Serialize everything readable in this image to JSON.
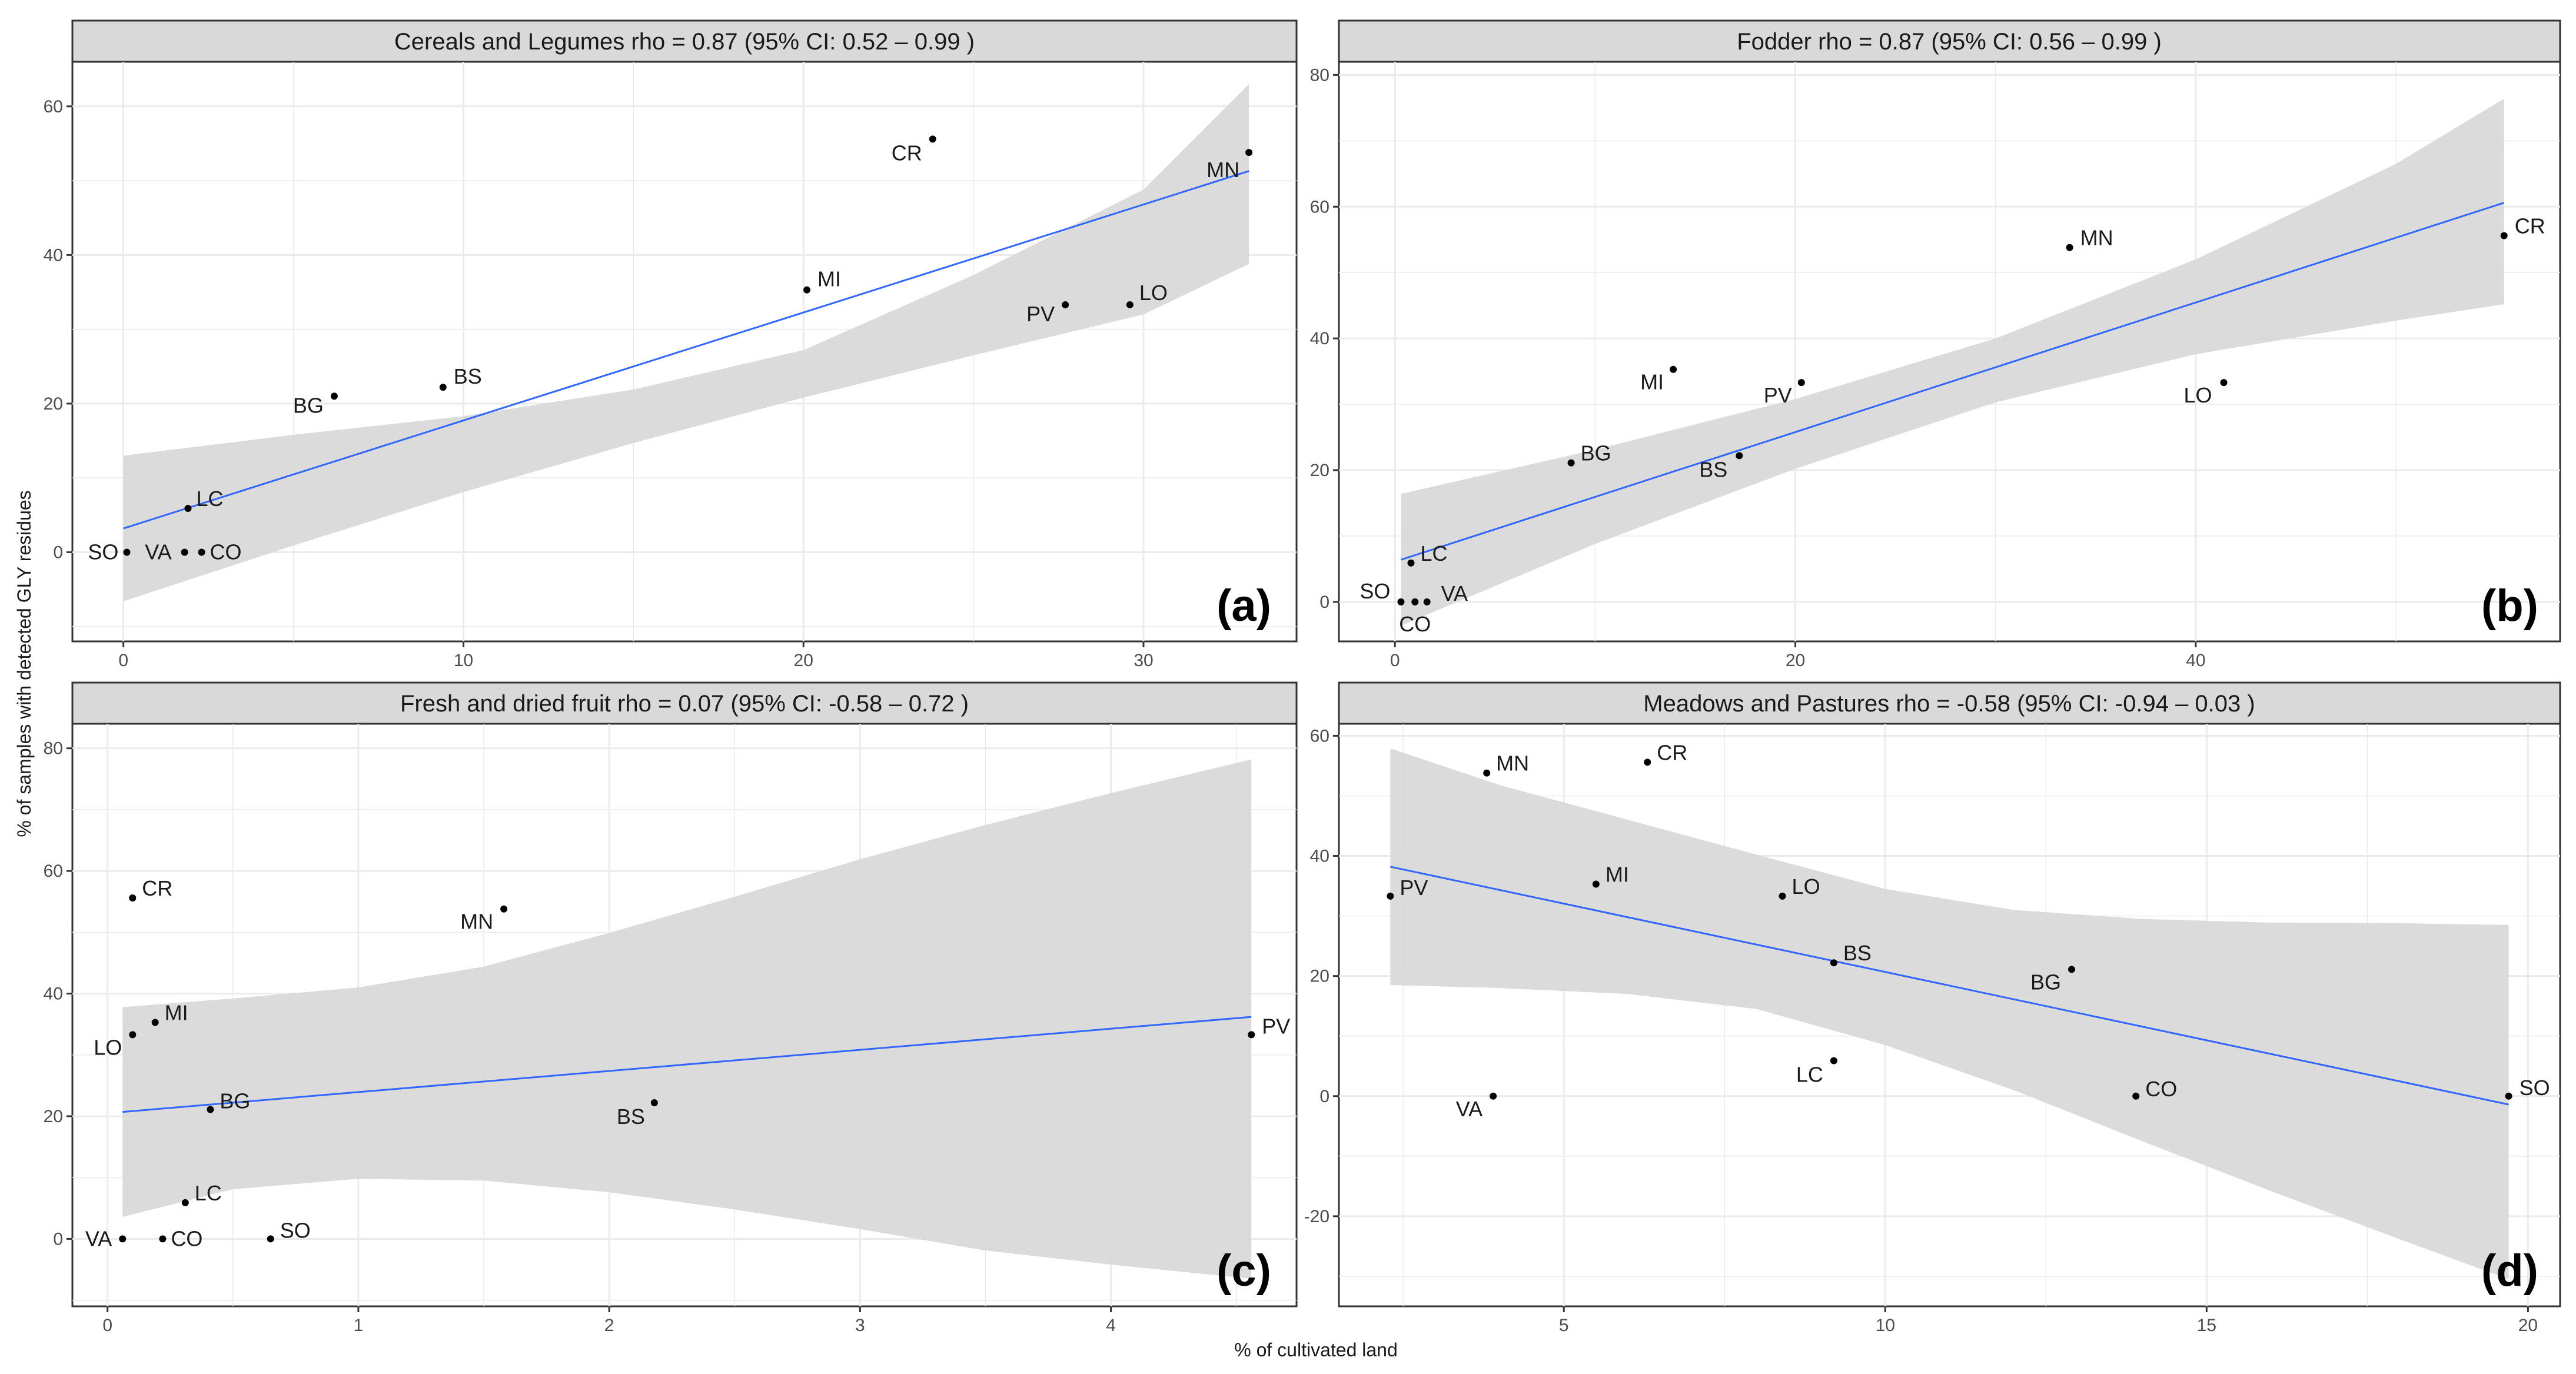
{
  "figure": {
    "xlabel": "% of cultivated land",
    "ylabel": "% of samples with detected GLY residues"
  },
  "colors": {
    "fit_line": "#3366ff",
    "confidence_band": "#d9d9d9",
    "points": "#000000",
    "strip_bg": "#d9d9d9",
    "grid": "#ebebeb"
  },
  "chart_data": [
    {
      "type": "scatter",
      "panel_tag": "(a)",
      "title": "Cereals and Legumes   rho = 0.87 (95% CI: 0.52 – 0.99 )",
      "xlim": [
        -1.5,
        34.5
      ],
      "ylim": [
        -12,
        66
      ],
      "xticks": [
        0,
        10,
        20,
        30
      ],
      "yticks": [
        0,
        20,
        40,
        60
      ],
      "points": [
        {
          "label": "SO",
          "x": 0.1,
          "y": 0
        },
        {
          "label": "VA",
          "x": 1.8,
          "y": 0
        },
        {
          "label": "CO",
          "x": 2.3,
          "y": 0
        },
        {
          "label": "LC",
          "x": 1.9,
          "y": 5.9
        },
        {
          "label": "BG",
          "x": 6.2,
          "y": 21
        },
        {
          "label": "BS",
          "x": 9.4,
          "y": 22.2
        },
        {
          "label": "MI",
          "x": 20.1,
          "y": 35.3
        },
        {
          "label": "CR",
          "x": 23.8,
          "y": 55.6
        },
        {
          "label": "PV",
          "x": 27.7,
          "y": 33.3
        },
        {
          "label": "LO",
          "x": 29.6,
          "y": 33.3
        },
        {
          "label": "MN",
          "x": 33.1,
          "y": 53.8
        }
      ],
      "fit": {
        "x": [
          0,
          33.1
        ],
        "y": [
          3.2,
          51.3
        ]
      },
      "band": {
        "x": [
          0,
          5,
          10,
          15,
          20,
          25,
          30,
          33.1
        ],
        "lower": [
          -6.6,
          0.9,
          8.1,
          14.7,
          20.8,
          26.5,
          32.0,
          38.8
        ],
        "upper": [
          13.0,
          15.8,
          18.3,
          21.9,
          27.2,
          37.3,
          48.8,
          63.0
        ]
      }
    },
    {
      "type": "scatter",
      "panel_tag": "(b)",
      "title": "Fodder   rho = 0.87 (95% CI: 0.56 – 0.99 )",
      "xlim": [
        -2.8,
        58.2
      ],
      "ylim": [
        -6,
        82
      ],
      "xticks": [
        0,
        20,
        40
      ],
      "yticks": [
        0,
        20,
        40,
        60,
        80
      ],
      "points": [
        {
          "label": "SO",
          "x": 0.3,
          "y": 0
        },
        {
          "label": "CO",
          "x": 1.0,
          "y": 0
        },
        {
          "label": "VA",
          "x": 1.6,
          "y": 0
        },
        {
          "label": "LC",
          "x": 0.8,
          "y": 5.9
        },
        {
          "label": "BG",
          "x": 8.8,
          "y": 21.1
        },
        {
          "label": "BS",
          "x": 17.2,
          "y": 22.2
        },
        {
          "label": "MI",
          "x": 13.9,
          "y": 35.3
        },
        {
          "label": "PV",
          "x": 20.3,
          "y": 33.3
        },
        {
          "label": "MN",
          "x": 33.7,
          "y": 53.8
        },
        {
          "label": "LO",
          "x": 41.4,
          "y": 33.3
        },
        {
          "label": "CR",
          "x": 55.4,
          "y": 55.6
        }
      ],
      "fit": {
        "x": [
          0.3,
          55.4
        ],
        "y": [
          6.4,
          60.6
        ]
      },
      "band": {
        "x": [
          0.3,
          10,
          20,
          30,
          40,
          50,
          55.4
        ],
        "lower": [
          -3.6,
          8.8,
          20.2,
          30.3,
          37.6,
          42.7,
          45.2
        ],
        "upper": [
          16.4,
          23.1,
          30.8,
          40.0,
          52.0,
          66.5,
          76.4
        ]
      }
    },
    {
      "type": "scatter",
      "panel_tag": "(c)",
      "title": "Fresh and dried fruit   rho = 0.07 (95% CI: -0.58 – 0.72 )",
      "xlim": [
        -0.14,
        4.74
      ],
      "ylim": [
        -11,
        84
      ],
      "xticks": [
        0,
        1,
        2,
        3,
        4
      ],
      "yticks": [
        0,
        20,
        40,
        60,
        80
      ],
      "points": [
        {
          "label": "VA",
          "x": 0.06,
          "y": 0
        },
        {
          "label": "CO",
          "x": 0.22,
          "y": 0
        },
        {
          "label": "SO",
          "x": 0.65,
          "y": 0
        },
        {
          "label": "LC",
          "x": 0.31,
          "y": 5.9
        },
        {
          "label": "BG",
          "x": 0.41,
          "y": 21.1
        },
        {
          "label": "BS",
          "x": 2.18,
          "y": 22.2
        },
        {
          "label": "LO",
          "x": 0.1,
          "y": 33.3
        },
        {
          "label": "MI",
          "x": 0.19,
          "y": 35.3
        },
        {
          "label": "MN",
          "x": 1.58,
          "y": 53.8
        },
        {
          "label": "CR",
          "x": 0.1,
          "y": 55.6
        },
        {
          "label": "PV",
          "x": 4.56,
          "y": 33.3
        }
      ],
      "fit": {
        "x": [
          0.06,
          4.56
        ],
        "y": [
          20.7,
          36.2
        ]
      },
      "band": {
        "x": [
          0.06,
          0.5,
          1.0,
          1.5,
          2.0,
          2.5,
          3.0,
          3.5,
          4.0,
          4.56
        ],
        "lower": [
          3.6,
          8.1,
          9.8,
          9.5,
          7.6,
          4.8,
          1.6,
          -1.9,
          -4.2,
          -6.5
        ],
        "upper": [
          37.8,
          39.2,
          41.0,
          44.4,
          49.9,
          55.8,
          61.9,
          67.5,
          72.7,
          78.2
        ]
      }
    },
    {
      "type": "scatter",
      "panel_tag": "(d)",
      "title": "Meadows and Pastures   rho = -0.58 (95% CI: -0.94 – 0.03 )",
      "xlim": [
        1.5,
        20.5
      ],
      "ylim": [
        -35,
        62
      ],
      "xticks": [
        5,
        10,
        15,
        20
      ],
      "yticks": [
        -20,
        0,
        20,
        40,
        60
      ],
      "points": [
        {
          "label": "PV",
          "x": 2.3,
          "y": 33.3
        },
        {
          "label": "MN",
          "x": 3.8,
          "y": 53.8
        },
        {
          "label": "VA",
          "x": 3.9,
          "y": 0
        },
        {
          "label": "MI",
          "x": 5.5,
          "y": 35.3
        },
        {
          "label": "CR",
          "x": 6.3,
          "y": 55.6
        },
        {
          "label": "LO",
          "x": 8.4,
          "y": 33.3
        },
        {
          "label": "BS",
          "x": 9.2,
          "y": 22.2
        },
        {
          "label": "LC",
          "x": 9.2,
          "y": 5.9
        },
        {
          "label": "BG",
          "x": 12.9,
          "y": 21.1
        },
        {
          "label": "CO",
          "x": 13.9,
          "y": 0
        },
        {
          "label": "SO",
          "x": 19.7,
          "y": 0
        }
      ],
      "fit": {
        "x": [
          2.3,
          19.7
        ],
        "y": [
          38.2,
          -1.4
        ]
      },
      "band": {
        "x": [
          2.3,
          4,
          6,
          8,
          10,
          12,
          14,
          16,
          18,
          19.7
        ],
        "lower": [
          18.5,
          18.0,
          17.0,
          14.5,
          8.5,
          1.0,
          -7.5,
          -15.8,
          -23.8,
          -30.5
        ],
        "upper": [
          57.9,
          51.8,
          46.0,
          40.2,
          34.5,
          31.0,
          29.5,
          28.9,
          28.8,
          28.5
        ]
      }
    }
  ]
}
